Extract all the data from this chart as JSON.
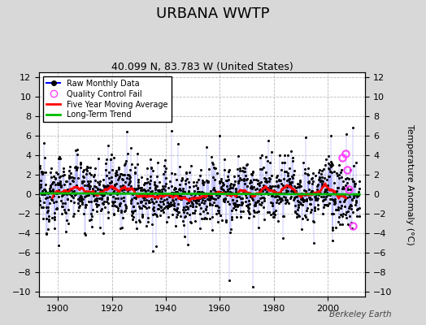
{
  "title": "URBANA WWTP",
  "subtitle": "40.099 N, 83.783 W (United States)",
  "ylabel": "Temperature Anomaly (°C)",
  "watermark": "Berkeley Earth",
  "xlim": [
    1893,
    2014
  ],
  "ylim": [
    -10.5,
    12.5
  ],
  "yticks": [
    -10,
    -8,
    -6,
    -4,
    -2,
    0,
    2,
    4,
    6,
    8,
    10,
    12
  ],
  "xticks": [
    1900,
    1920,
    1940,
    1960,
    1980,
    2000
  ],
  "start_year": 1893,
  "end_year": 2011,
  "raw_color": "#5555ff",
  "ma_color": "#ff0000",
  "trend_color": "#00bb00",
  "qc_color": "#ff44ff",
  "bg_color": "#d8d8d8",
  "plot_bg_color": "#ffffff",
  "grid_color": "#bbbbbb",
  "seed": 12345
}
